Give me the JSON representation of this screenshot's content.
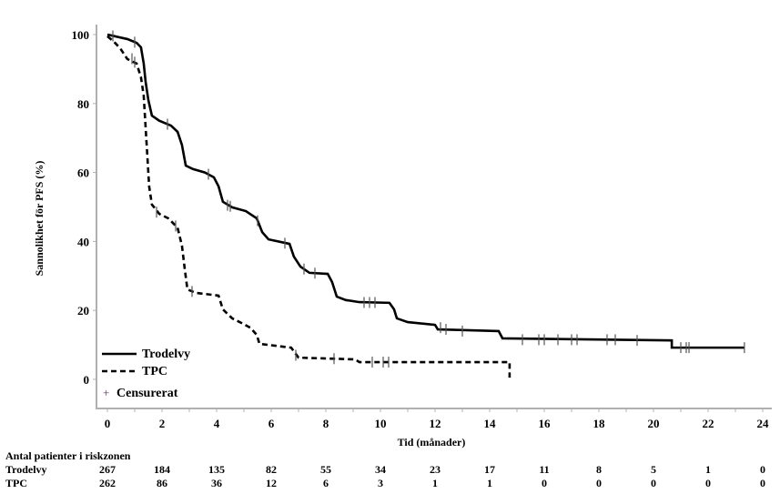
{
  "chart_data": {
    "type": "line",
    "subtype": "kaplan-meier",
    "title": "",
    "xlabel": "Tid (månader)",
    "ylabel": "Sannolikhet för PFS (%)",
    "xlim": [
      0,
      24
    ],
    "ylim": [
      0,
      100
    ],
    "x_ticks": [
      0,
      2,
      4,
      6,
      8,
      10,
      12,
      14,
      16,
      18,
      20,
      22,
      24
    ],
    "y_ticks": [
      0,
      20,
      40,
      60,
      80,
      100
    ],
    "grid": false,
    "legend_position": "bottom-left",
    "series": [
      {
        "name": "Trodelvy",
        "style": "solid",
        "color": "#000000",
        "points": [
          [
            0,
            100
          ],
          [
            0.73,
            98.7
          ],
          [
            1.07,
            97.6
          ],
          [
            1.23,
            96.3
          ],
          [
            1.33,
            91.6
          ],
          [
            1.4,
            86.3
          ],
          [
            1.5,
            81
          ],
          [
            1.63,
            76.5
          ],
          [
            1.9,
            75
          ],
          [
            2.33,
            73.6
          ],
          [
            2.57,
            71.8
          ],
          [
            2.73,
            68
          ],
          [
            2.87,
            62
          ],
          [
            3.13,
            61
          ],
          [
            3.57,
            60
          ],
          [
            3.9,
            58.6
          ],
          [
            4.07,
            56
          ],
          [
            4.23,
            51.5
          ],
          [
            4.57,
            49.9
          ],
          [
            5.07,
            48.8
          ],
          [
            5.47,
            46.7
          ],
          [
            5.67,
            42.7
          ],
          [
            5.9,
            40.6
          ],
          [
            6.67,
            39.3
          ],
          [
            6.83,
            35.6
          ],
          [
            7.07,
            32.7
          ],
          [
            7.4,
            30.9
          ],
          [
            8.07,
            30.6
          ],
          [
            8.23,
            28.2
          ],
          [
            8.4,
            24
          ],
          [
            8.73,
            23
          ],
          [
            9.23,
            22.4
          ],
          [
            10.33,
            22.2
          ],
          [
            10.5,
            20.3
          ],
          [
            10.6,
            17.7
          ],
          [
            11,
            16.6
          ],
          [
            12,
            15.8
          ],
          [
            12.1,
            14.5
          ],
          [
            14.33,
            14
          ],
          [
            14.47,
            11.9
          ],
          [
            20.67,
            11.3
          ],
          [
            20.67,
            9.2
          ],
          [
            23.33,
            9.2
          ]
        ],
        "censored": [
          [
            0.2,
            99.6
          ],
          [
            1.0,
            97.8
          ],
          [
            2.2,
            74
          ],
          [
            3.7,
            59.5
          ],
          [
            4.4,
            50.5
          ],
          [
            4.5,
            50.2
          ],
          [
            5.5,
            46
          ],
          [
            6.5,
            39.5
          ],
          [
            7.2,
            32
          ],
          [
            7.6,
            30.8
          ],
          [
            9.4,
            22.3
          ],
          [
            9.6,
            22.3
          ],
          [
            9.8,
            22.3
          ],
          [
            12.2,
            15
          ],
          [
            12.4,
            14.5
          ],
          [
            13.0,
            14
          ],
          [
            15.2,
            11.5
          ],
          [
            15.8,
            11.5
          ],
          [
            16.0,
            11.5
          ],
          [
            16.5,
            11.5
          ],
          [
            17.0,
            11.5
          ],
          [
            17.2,
            11.5
          ],
          [
            18.3,
            11.5
          ],
          [
            18.6,
            11.5
          ],
          [
            19.4,
            11.3
          ],
          [
            21.0,
            9.2
          ],
          [
            21.2,
            9.2
          ],
          [
            21.3,
            9.2
          ],
          [
            23.33,
            9.2
          ]
        ]
      },
      {
        "name": "TPC",
        "style": "dashed",
        "color": "#000000",
        "points": [
          [
            0,
            99.5
          ],
          [
            0.23,
            98
          ],
          [
            0.47,
            96
          ],
          [
            0.73,
            92.9
          ],
          [
            1.07,
            91.6
          ],
          [
            1.23,
            87.6
          ],
          [
            1.33,
            82.3
          ],
          [
            1.4,
            73
          ],
          [
            1.47,
            63.9
          ],
          [
            1.53,
            55.9
          ],
          [
            1.63,
            50.7
          ],
          [
            1.9,
            48
          ],
          [
            2.23,
            46.7
          ],
          [
            2.57,
            44
          ],
          [
            2.73,
            38.8
          ],
          [
            2.83,
            32.2
          ],
          [
            2.93,
            26.1
          ],
          [
            3.23,
            25.1
          ],
          [
            4.07,
            24.3
          ],
          [
            4.23,
            20.3
          ],
          [
            4.57,
            17.7
          ],
          [
            4.9,
            16.4
          ],
          [
            5.23,
            15
          ],
          [
            5.47,
            12.9
          ],
          [
            5.57,
            10.3
          ],
          [
            6.73,
            9.2
          ],
          [
            7.0,
            6.3
          ],
          [
            9.07,
            5.8
          ],
          [
            9.23,
            5
          ],
          [
            14.73,
            5
          ],
          [
            14.73,
            0.5
          ]
        ],
        "censored": [
          [
            0.9,
            93
          ],
          [
            1.0,
            92
          ],
          [
            1.8,
            48.5
          ],
          [
            2.5,
            44.5
          ],
          [
            3.1,
            25.5
          ],
          [
            6.9,
            7
          ],
          [
            8.3,
            6
          ],
          [
            9.7,
            5
          ],
          [
            10.1,
            5
          ],
          [
            10.3,
            5
          ]
        ]
      }
    ],
    "legend": {
      "entries": [
        "Trodelvy",
        "TPC"
      ],
      "censored_label": "Censurerat",
      "censored_symbol": "+"
    },
    "risk_table": {
      "title": "Antal patienter i riskzonen",
      "times": [
        0,
        2,
        4,
        6,
        8,
        10,
        12,
        14,
        16,
        18,
        20,
        22,
        24
      ],
      "rows": [
        {
          "label": "Trodelvy",
          "values": [
            "267",
            "184",
            "135",
            "82",
            "55",
            "34",
            "23",
            "17",
            "11",
            "8",
            "5",
            "1",
            "0"
          ]
        },
        {
          "label": "TPC",
          "values": [
            "262",
            "86",
            "36",
            "12",
            "6",
            "3",
            "1",
            "1",
            "0",
            "0",
            "0",
            "0",
            "0"
          ]
        }
      ]
    }
  },
  "colors": {
    "axis": "#b0b0b0",
    "line": "#000000",
    "censor_mark": "#555555"
  }
}
